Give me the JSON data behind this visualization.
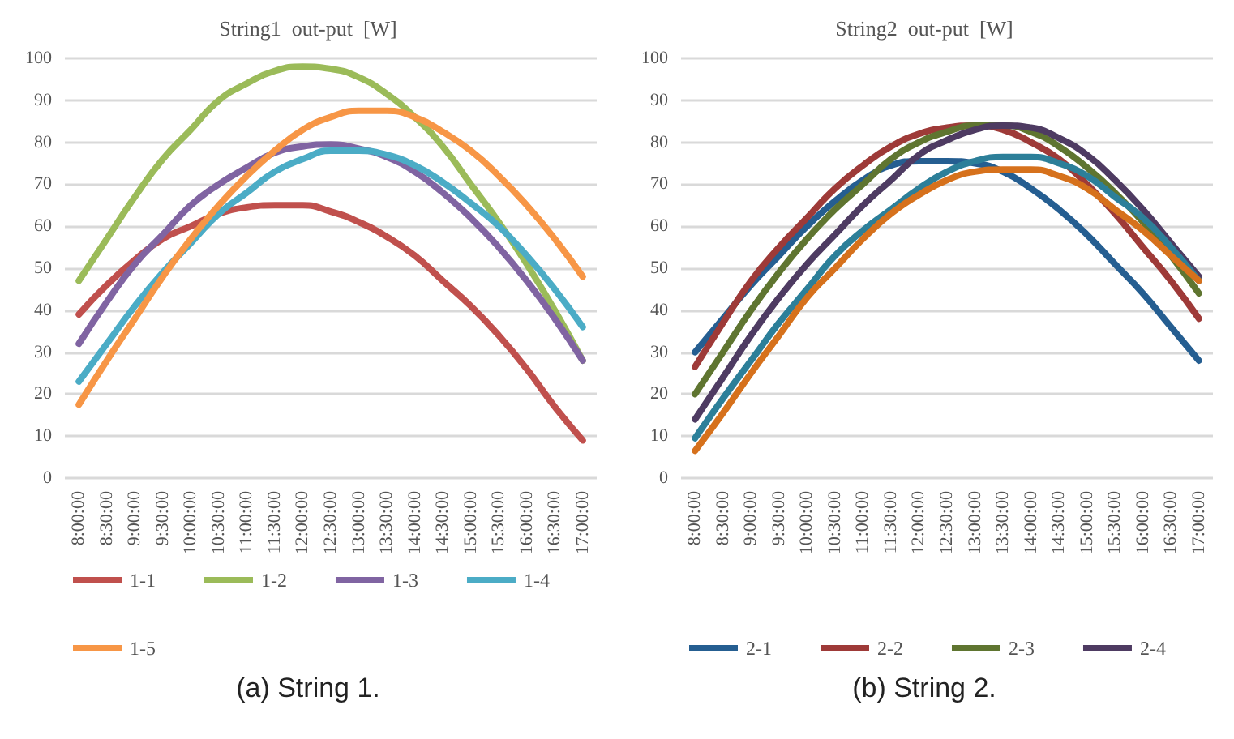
{
  "chart_data": [
    {
      "type": "line",
      "title": "String1  out-put  [W]",
      "annotations": [
        "(a) String 1."
      ],
      "categories": [
        "8:00:00",
        "8:30:00",
        "9:00:00",
        "9:30:00",
        "10:00:00",
        "10:30:00",
        "11:00:00",
        "11:30:00",
        "12:00:00",
        "12:30:00",
        "13:00:00",
        "13:30:00",
        "14:00:00",
        "14:30:00",
        "15:00:00",
        "15:30:00",
        "16:00:00",
        "16:30:00",
        "17:00:00"
      ],
      "ylim": [
        0,
        100
      ],
      "yticks": [
        0,
        10,
        20,
        30,
        40,
        50,
        60,
        70,
        80,
        90,
        100
      ],
      "grid": "y",
      "legend": "bottom",
      "marker": "none",
      "line_style": "solid",
      "series": [
        {
          "name": "1-1",
          "color": "#c0504d",
          "values": [
            39,
            46,
            52,
            57,
            60,
            63,
            64.5,
            65,
            65,
            63.5,
            61,
            57.5,
            53,
            47,
            41,
            34,
            26,
            17,
            9
          ]
        },
        {
          "name": "1-2",
          "color": "#9bbb59",
          "values": [
            47,
            57,
            67,
            76,
            83,
            90,
            94,
            97,
            98,
            97.5,
            95.5,
            91.5,
            86,
            79,
            70,
            61,
            51,
            40,
            28
          ]
        },
        {
          "name": "1-3",
          "color": "#8064a2",
          "values": [
            32,
            42,
            51,
            58,
            65,
            70,
            74,
            77.5,
            79,
            79.5,
            78.5,
            76.5,
            73,
            68,
            62,
            55,
            47,
            38,
            28
          ]
        },
        {
          "name": "1-4",
          "color": "#4bacc6",
          "values": [
            23,
            32,
            41,
            49,
            56,
            63,
            68,
            73,
            76,
            78,
            78,
            77,
            74.5,
            70.5,
            65.5,
            60,
            53,
            45,
            36
          ]
        },
        {
          "name": "1-5",
          "color": "#f79646",
          "values": [
            17.5,
            28,
            38,
            48,
            57,
            65,
            72,
            78,
            83,
            86,
            87.5,
            87.5,
            86,
            82.5,
            78,
            72,
            65,
            57,
            48
          ]
        }
      ]
    },
    {
      "type": "line",
      "title": "String2  out-put  [W]",
      "annotations": [
        "(b) String 2."
      ],
      "categories": [
        "8:00:00",
        "8:30:00",
        "9:00:00",
        "9:30:00",
        "10:00:00",
        "10:30:00",
        "11:00:00",
        "11:30:00",
        "12:00:00",
        "12:30:00",
        "13:00:00",
        "13:30:00",
        "14:00:00",
        "14:30:00",
        "15:00:00",
        "15:30:00",
        "16:00:00",
        "16:30:00",
        "17:00:00"
      ],
      "ylim": [
        0,
        100
      ],
      "yticks": [
        0,
        10,
        20,
        30,
        40,
        50,
        60,
        70,
        80,
        90,
        100
      ],
      "grid": "y",
      "legend": "bottom",
      "marker": "none",
      "line_style": "solid",
      "series": [
        {
          "name": "2-1",
          "color": "#255e91",
          "values": [
            30,
            38,
            46,
            53,
            60,
            66,
            71,
            74.5,
            75.5,
            75.5,
            75,
            73,
            69,
            64,
            58,
            51,
            44,
            36,
            28
          ]
        },
        {
          "name": "2-2",
          "color": "#9e3a38",
          "values": [
            26.5,
            37,
            47,
            55,
            62,
            69,
            74.5,
            79,
            82,
            83.5,
            84,
            83,
            80,
            76,
            70,
            63,
            55,
            47,
            38
          ]
        },
        {
          "name": "2-3",
          "color": "#5f7530",
          "values": [
            20,
            30,
            40,
            49,
            57,
            64,
            70,
            76,
            80,
            82.5,
            84,
            84,
            82.5,
            79,
            74,
            68,
            61,
            53,
            44
          ]
        },
        {
          "name": "2-4",
          "color": "#4e3b62",
          "values": [
            14,
            24,
            34,
            43,
            51,
            58,
            65,
            71,
            77,
            80.5,
            83,
            84,
            83.5,
            81,
            77,
            71,
            64,
            56,
            48
          ]
        },
        {
          "color": "#2c7f99",
          "values": [
            9.5,
            19,
            28,
            37,
            45,
            53,
            59,
            64,
            69,
            73,
            75.5,
            76.5,
            76.5,
            75,
            72,
            67,
            62,
            55,
            47
          ]
        },
        {
          "color": "#d6711c",
          "values": [
            6.5,
            15.5,
            25,
            34,
            43,
            50,
            57,
            63,
            67.5,
            71,
            73,
            73.5,
            73.5,
            72,
            69,
            64,
            59,
            53,
            47
          ]
        }
      ]
    }
  ]
}
